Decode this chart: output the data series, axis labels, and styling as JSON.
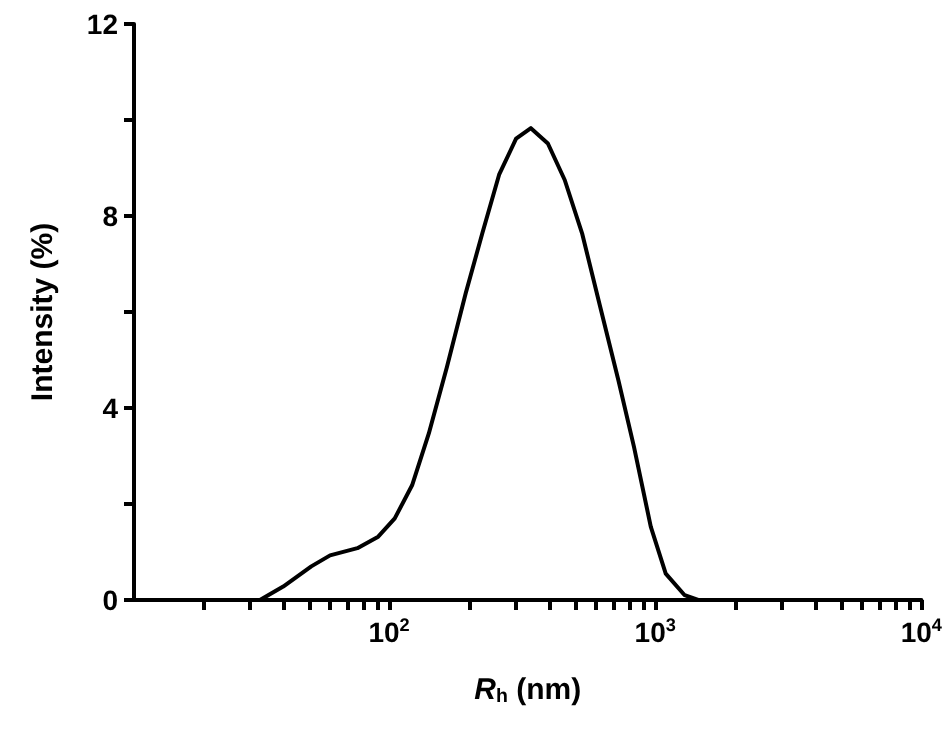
{
  "chart_data": {
    "type": "line",
    "xlabel": "R$_{h}$ (nm)",
    "ylabel": "Intensity (%)",
    "log": "x",
    "grid": false,
    "marker": "none",
    "line_style": "solid",
    "x": [
      32.7,
      40,
      51,
      60,
      76,
      91,
      105,
      122,
      141,
      165,
      194,
      224,
      259,
      300,
      341,
      395,
      457,
      531,
      621,
      727,
      832,
      962,
      1095,
      1290,
      1450
    ],
    "series": [
      {
        "color": "#000000",
        "values": [
          0,
          0.28,
          0.7,
          0.93,
          1.08,
          1.32,
          1.7,
          2.39,
          3.47,
          4.86,
          6.39,
          7.64,
          8.86,
          9.61,
          9.83,
          9.51,
          8.75,
          7.64,
          6.11,
          4.58,
          3.19,
          1.53,
          0.55,
          0.1,
          0
        ]
      }
    ],
    "xlim": [
      11,
      10000
    ],
    "xticks": [
      {
        "value": 20,
        "label": null
      },
      {
        "value": 30,
        "label": null
      },
      {
        "value": 40,
        "label": null
      },
      {
        "value": 50,
        "label": null
      },
      {
        "value": 60,
        "label": null
      },
      {
        "value": 70,
        "label": null
      },
      {
        "value": 80,
        "label": null
      },
      {
        "value": 90,
        "label": null
      },
      {
        "value": 100,
        "label": "10$^{2}$"
      },
      {
        "value": 200,
        "label": null
      },
      {
        "value": 300,
        "label": null
      },
      {
        "value": 400,
        "label": null
      },
      {
        "value": 500,
        "label": null
      },
      {
        "value": 600,
        "label": null
      },
      {
        "value": 700,
        "label": null
      },
      {
        "value": 800,
        "label": null
      },
      {
        "value": 900,
        "label": null
      },
      {
        "value": 1000,
        "label": "10$^{3}$"
      },
      {
        "value": 2000,
        "label": null
      },
      {
        "value": 3000,
        "label": null
      },
      {
        "value": 4000,
        "label": null
      },
      {
        "value": 5000,
        "label": null
      },
      {
        "value": 6000,
        "label": null
      },
      {
        "value": 7000,
        "label": null
      },
      {
        "value": 8000,
        "label": null
      },
      {
        "value": 9000,
        "label": null
      },
      {
        "value": 10000,
        "label": "10$^{4}$"
      }
    ],
    "ylim": [
      0,
      12
    ],
    "yticks": [
      0,
      {
        "value": 2,
        "label": null
      },
      4,
      {
        "value": 6,
        "label": null
      },
      8,
      {
        "value": 10,
        "label": null
      },
      12
    ]
  }
}
